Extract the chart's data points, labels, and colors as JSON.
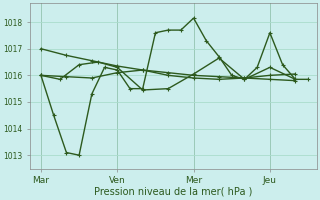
{
  "background_color": "#cceeed",
  "grid_color": "#aaddcc",
  "line_color": "#2d5a1e",
  "title": "Pression niveau de la mer( hPa )",
  "ylim": [
    1012.5,
    1018.7
  ],
  "yticks": [
    1013,
    1014,
    1015,
    1016,
    1017,
    1018
  ],
  "xtick_labels": [
    "Mar",
    "Ven",
    "Mer",
    "Jeu"
  ],
  "xtick_positions": [
    0,
    36,
    72,
    108
  ],
  "xlim": [
    -5,
    130
  ],
  "vline_color": "#556655",
  "series": [
    {
      "x": [
        0,
        12,
        24,
        36,
        48,
        60,
        72,
        84,
        96,
        108,
        120
      ],
      "y": [
        1017.0,
        1016.75,
        1016.55,
        1016.35,
        1016.2,
        1016.1,
        1016.0,
        1015.95,
        1015.9,
        1015.85,
        1015.8
      ]
    },
    {
      "x": [
        0,
        12,
        24,
        36,
        48,
        60,
        72,
        84,
        96,
        108,
        120
      ],
      "y": [
        1016.0,
        1015.95,
        1015.9,
        1016.1,
        1016.2,
        1016.0,
        1015.9,
        1015.85,
        1015.9,
        1016.0,
        1016.05
      ]
    },
    {
      "x": [
        0,
        6,
        12,
        18,
        24,
        30,
        36,
        42,
        48,
        54,
        60,
        66,
        72,
        78,
        84,
        90,
        96,
        102,
        108,
        114,
        120,
        126
      ],
      "y": [
        1016.0,
        1014.5,
        1013.1,
        1013.0,
        1015.3,
        1016.3,
        1016.2,
        1015.5,
        1015.5,
        1017.6,
        1017.7,
        1017.7,
        1018.15,
        1017.3,
        1016.7,
        1016.0,
        1015.85,
        1016.3,
        1017.6,
        1016.4,
        1015.85,
        1015.85
      ]
    },
    {
      "x": [
        0,
        9,
        18,
        27,
        36,
        48,
        60,
        72,
        84,
        96,
        108,
        120
      ],
      "y": [
        1016.0,
        1015.85,
        1016.4,
        1016.5,
        1016.3,
        1015.45,
        1015.5,
        1016.05,
        1016.65,
        1015.85,
        1016.3,
        1015.85
      ]
    }
  ]
}
